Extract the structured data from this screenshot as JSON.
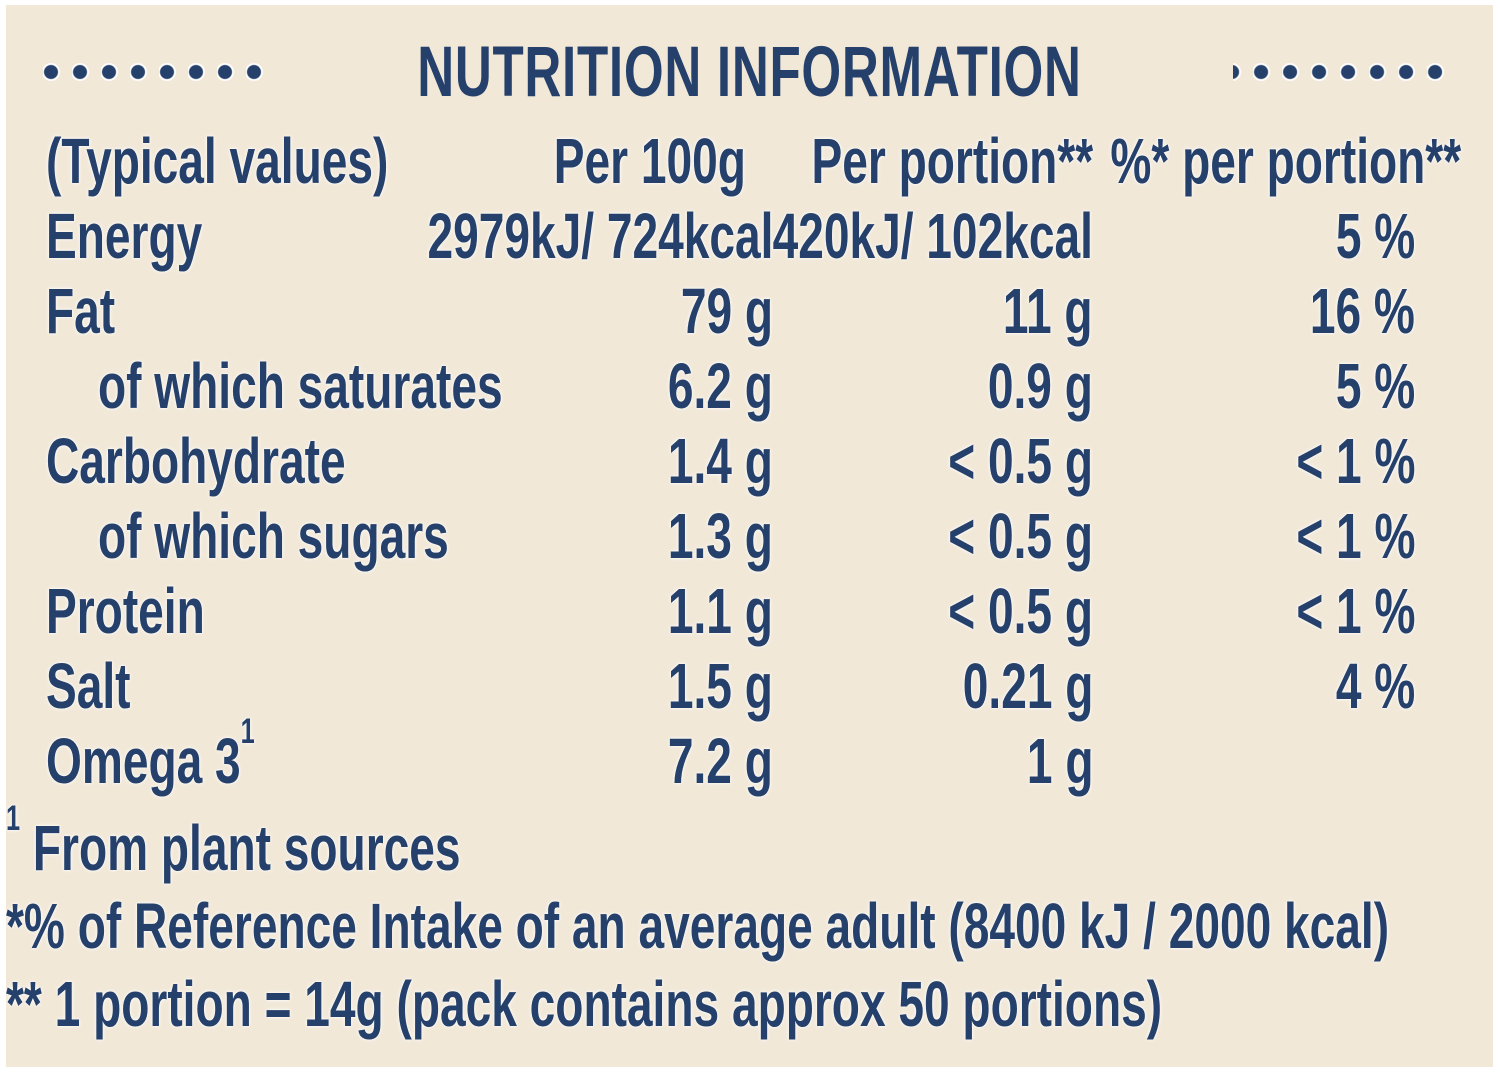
{
  "colors": {
    "background": "#f1e8d8",
    "ink": "#24406b"
  },
  "header": {
    "title": "NUTRITION INFORMATION"
  },
  "table": {
    "columns": {
      "label": "(Typical values)",
      "per100": "Per 100g",
      "portion": "Per portion**",
      "pct": "%* per portion**"
    },
    "rows": [
      {
        "label": "Energy",
        "per100": "2979kJ/ 724kcal",
        "portion": "420kJ/ 102kcal",
        "pct": "5 %"
      },
      {
        "label": "Fat",
        "per100": "79 g",
        "portion": "11 g",
        "pct": "16 %"
      },
      {
        "label": "of which saturates",
        "per100": "6.2 g",
        "portion": "0.9 g",
        "pct": "5 %"
      },
      {
        "label": "Carbohydrate",
        "per100": "1.4 g",
        "portion": "< 0.5 g",
        "pct": "< 1 %"
      },
      {
        "label": "of which sugars",
        "per100": "1.3 g",
        "portion": "< 0.5 g",
        "pct": "< 1 %"
      },
      {
        "label": "Protein",
        "per100": "1.1 g",
        "portion": "< 0.5 g",
        "pct": "< 1 %"
      },
      {
        "label": "Salt",
        "per100": "1.5 g",
        "portion": "0.21 g",
        "pct": "4 %"
      },
      {
        "label": "Omega 3",
        "sup": "1",
        "per100": "7.2 g",
        "portion": "1 g",
        "pct": ""
      }
    ]
  },
  "footnotes": [
    {
      "sup": "1",
      "text": "From plant sources"
    },
    {
      "text": "*% of Reference Intake of an average adult (8400 kJ / 2000 kcal)"
    },
    {
      "text": "** 1 portion = 14g (pack contains approx 50 portions)"
    }
  ]
}
